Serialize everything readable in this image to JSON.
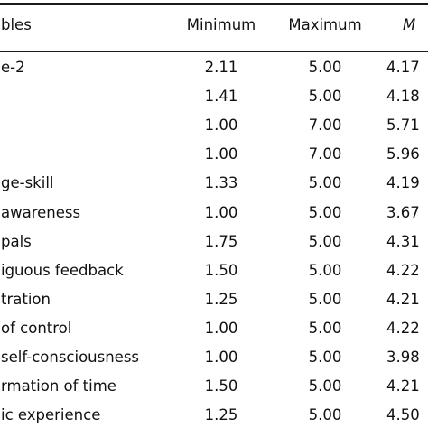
{
  "table": {
    "headers": {
      "variable": "bles",
      "minimum": "Minimum",
      "maximum": "Maximum",
      "mean": "M"
    },
    "rows": [
      {
        "variable": "e-2",
        "minimum": "2.11",
        "maximum": "5.00",
        "mean": "4.17"
      },
      {
        "variable": "",
        "minimum": "1.41",
        "maximum": "5.00",
        "mean": "4.18"
      },
      {
        "variable": "",
        "minimum": "1.00",
        "maximum": "7.00",
        "mean": "5.71"
      },
      {
        "variable": "",
        "minimum": "1.00",
        "maximum": "7.00",
        "mean": "5.96"
      },
      {
        "variable": "ge-skill",
        "minimum": "1.33",
        "maximum": "5.00",
        "mean": "4.19"
      },
      {
        "variable": "awareness",
        "minimum": "1.00",
        "maximum": "5.00",
        "mean": "3.67"
      },
      {
        "variable": "pals",
        "minimum": "1.75",
        "maximum": "5.00",
        "mean": "4.31"
      },
      {
        "variable": "iguous feedback",
        "minimum": "1.50",
        "maximum": "5.00",
        "mean": "4.22"
      },
      {
        "variable": "tration",
        "minimum": "1.25",
        "maximum": "5.00",
        "mean": "4.21"
      },
      {
        "variable": "of control",
        "minimum": "1.00",
        "maximum": "5.00",
        "mean": "4.22"
      },
      {
        "variable": "self-consciousness",
        "minimum": "1.00",
        "maximum": "5.00",
        "mean": "3.98"
      },
      {
        "variable": "rmation of time",
        "minimum": "1.50",
        "maximum": "5.00",
        "mean": "4.21"
      },
      {
        "variable": "ic experience",
        "minimum": "1.25",
        "maximum": "5.00",
        "mean": "4.50"
      }
    ]
  }
}
